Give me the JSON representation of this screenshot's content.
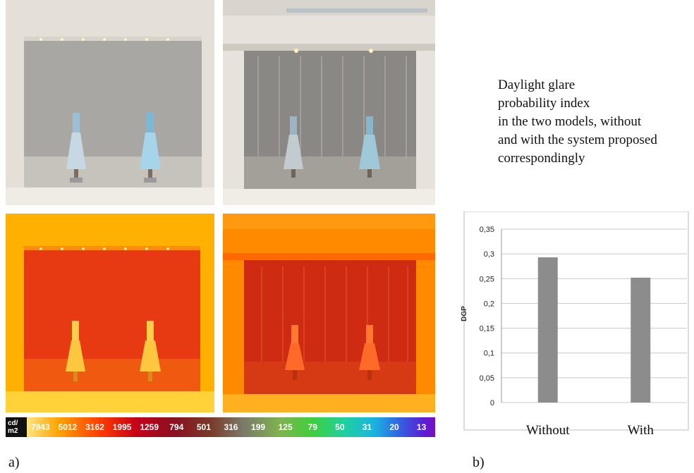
{
  "figure": {
    "panel_a_label": "a)",
    "panel_b_label": "b)",
    "description_lines": [
      "Daylight glare",
      "probability index",
      "in the two models, without",
      "and with the system proposed",
      "correspondingly"
    ]
  },
  "photos": {
    "top_left": "display-case-photo-without-system",
    "top_right": "display-case-photo-with-system",
    "bottom_left": "luminance-falsecolor-without-system",
    "bottom_right": "luminance-falsecolor-with-system"
  },
  "luminance_scale": {
    "unit_line1": "cd/",
    "unit_line2": "m2",
    "values": [
      "7943",
      "5012",
      "3162",
      "1995",
      "1259",
      "794",
      "501",
      "316",
      "199",
      "125",
      "79",
      "50",
      "31",
      "20",
      "13"
    ]
  },
  "chart_data": {
    "type": "bar",
    "categories": [
      "Without",
      "With"
    ],
    "values": [
      0.293,
      0.252
    ],
    "ylabel": "DGP",
    "xlabel": "",
    "ylim": [
      0,
      0.35
    ],
    "yticks": [
      0,
      0.05,
      0.1,
      0.15,
      0.2,
      0.25,
      0.3,
      0.35
    ],
    "ytick_labels": [
      "0",
      "0,05",
      "0,1",
      "0,15",
      "0,2",
      "0,25",
      "0,3",
      "0,35"
    ],
    "grid": true,
    "bar_color": "#8c8c8c",
    "grid_color": "#c8c8c8",
    "frame_color": "#bbbbbb"
  }
}
